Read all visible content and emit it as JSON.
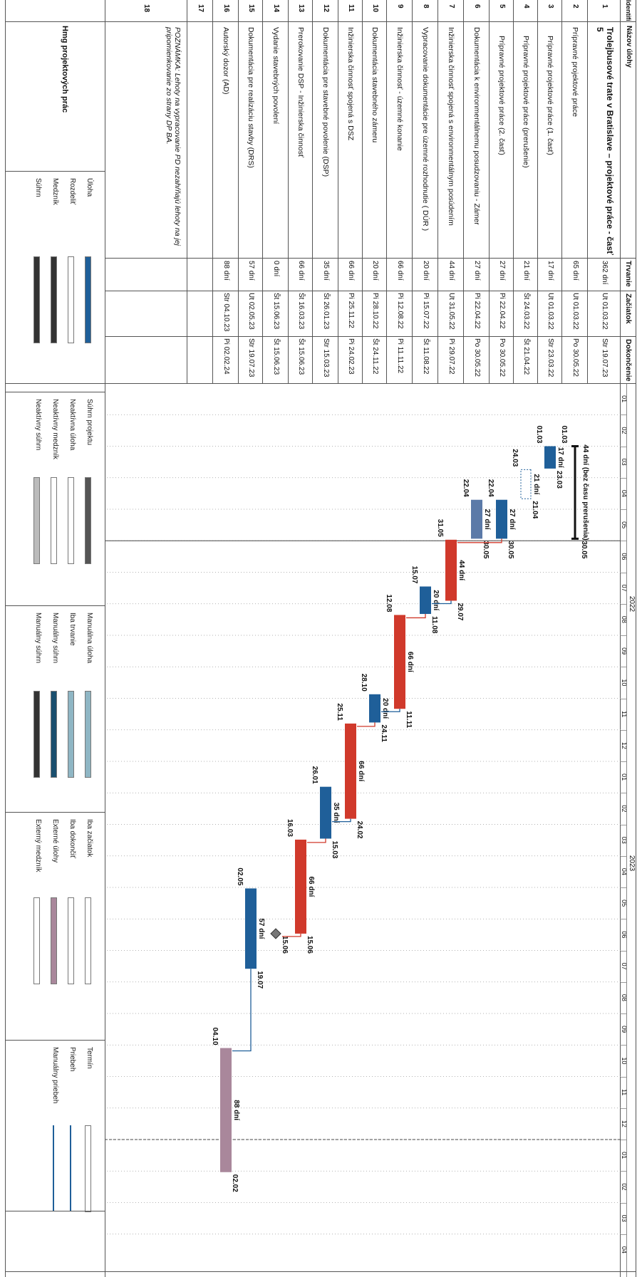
{
  "columns": {
    "id": "Identifi",
    "name": "Názov úlohy",
    "duration": "Trvanie",
    "start": "Začiatok",
    "finish": "Dokončenie"
  },
  "timeline": {
    "years": [
      {
        "label": "2022"
      },
      {
        "label": "2023"
      }
    ],
    "months": [
      "01",
      "02",
      "03",
      "04",
      "05",
      "06",
      "07",
      "08",
      "09",
      "10",
      "11",
      "12",
      "01",
      "02",
      "03",
      "04",
      "05",
      "06",
      "07",
      "08",
      "09",
      "10",
      "11",
      "12",
      "01",
      "02",
      "03",
      "04"
    ]
  },
  "tasks": [
    {
      "id": "1",
      "name": "Trolejbusové trate v Bratislave – projektové práce - časť 5",
      "duration": "362 dní",
      "start": "Ut 01.03.22",
      "finish": "Str 19.07.23",
      "bold": true
    },
    {
      "id": "2",
      "name": "Prípravné projektové práce",
      "duration": "65 dní",
      "start": "Ut 01.03.22",
      "finish": "Po 30.05.22"
    },
    {
      "id": "3",
      "name": "Prípravné projektové práce (1. časť)",
      "duration": "17 dní",
      "start": "Ut 01.03.22",
      "finish": "Str 23.03.22"
    },
    {
      "id": "4",
      "name": "Prípravné projektové práce (prerušenie)",
      "duration": "21 dní",
      "start": "Št 24.03.22",
      "finish": "Št 21.04.22"
    },
    {
      "id": "5",
      "name": "Prípravné projektové práce (2. časť)",
      "duration": "27 dní",
      "start": "Pi 22.04.22",
      "finish": "Po 30.05.22"
    },
    {
      "id": "6",
      "name": "Dokumentácia k environmentálnemu posudzovaniu - Zámer",
      "duration": "27 dní",
      "start": "Pi 22.04.22",
      "finish": "Po 30.05.22"
    },
    {
      "id": "7",
      "name": "Inžinierska činnosť spojená s environmentálnym posúdením",
      "duration": "44 dní",
      "start": "Ut 31.05.22",
      "finish": "Pi 29.07.22"
    },
    {
      "id": "8",
      "name": "Vypracovanie dokumentácie pre územné rozhodnutie ( DÚR )",
      "duration": "20 dní",
      "start": "Pi 15.07.22",
      "finish": "Št 11.08.22"
    },
    {
      "id": "9",
      "name": "Inžinierska činnosť - územné konanie",
      "duration": "66 dní",
      "start": "Pi 12.08.22",
      "finish": "Pi 11.11.22"
    },
    {
      "id": "10",
      "name": "Dokumentácia stavebného zámeru",
      "duration": "20 dní",
      "start": "Pi 28.10.22",
      "finish": "Št 24.11.22"
    },
    {
      "id": "11",
      "name": "Inžinierska činnosť spojená s DSZ",
      "duration": "66 dní",
      "start": "Pi 25.11.22",
      "finish": "Pi 24.02.23"
    },
    {
      "id": "12",
      "name": "Dokumentácia pre stavebné povolenie (DSP)",
      "duration": "35 dní",
      "start": "Št 26.01.23",
      "finish": "Str 15.03.23"
    },
    {
      "id": "13",
      "name": "Prerokovanie DSP - Inžinierska činnosť",
      "duration": "66 dní",
      "start": "Št 16.03.23",
      "finish": "Št 15.06.23"
    },
    {
      "id": "14",
      "name": "Vydanie stavebných povolení",
      "duration": "0 dní",
      "start": "Št 15.06.23",
      "finish": "Št 15.06.23"
    },
    {
      "id": "15",
      "name": "Dokumentácia pre realizáciu stavby (DRS)",
      "duration": "57 dní",
      "start": "Ut 02.05.23",
      "finish": "Str 19.07.23"
    },
    {
      "id": "16",
      "name": "Autorský dozor (AD)",
      "duration": "88 dní",
      "start": "Str 04.10.23",
      "finish": "Pi 02.02.24"
    },
    {
      "id": "17",
      "name": "",
      "duration": "",
      "start": "",
      "finish": ""
    },
    {
      "id": "18",
      "name": "POZNÁMKA: Lehoty na vypracovanie PD nezahŕňajú lehoty na jej pripomienkovanie zo strany DP BA.",
      "duration": "",
      "start": "",
      "finish": "",
      "italic": true
    }
  ],
  "gantt_labels": {
    "r2_dur": "44 dní (bez času prerušenia)",
    "r2_s": "01.03",
    "r2_f": "30.05",
    "r3_dur": "17 dní",
    "r3_s": "01.03",
    "r3_f": "23.03",
    "r4_dur": "21 dní",
    "r4_s": "24.03",
    "r4_f": "21.04",
    "r5_dur": "27 dní",
    "r5_s": "22.04",
    "r5_f": "30.05",
    "r6_dur": "27 dní",
    "r6_s": "22.04",
    "r6_f": "30.05",
    "r7_dur": "44 dní",
    "r7_s": "31.05",
    "r7_f": "29.07",
    "r8_dur": "20 dní",
    "r8_s": "15.07",
    "r8_f": "11.08",
    "r9_dur": "66 dní",
    "r9_s": "12.08",
    "r9_f": "11.11",
    "r10_dur": "20 dní",
    "r10_s": "28.10",
    "r10_f": "24.11",
    "r11_dur": "66 dní",
    "r11_s": "25.11",
    "r11_f": "24.02",
    "r12_dur": "35 dní",
    "r12_s": "26.01",
    "r12_f": "15.03",
    "r13_dur": "66 dní",
    "r13_s": "16.03",
    "r13_f": "15.06",
    "r14_f": "15.06",
    "r15_dur": "57 dní",
    "r15_s": "02.05",
    "r15_f": "19.07",
    "r16_dur": "88 dní",
    "r16_s": "04.10",
    "r16_f": "02.02"
  },
  "legend": {
    "title": "Hmg projektových prác",
    "col1": [
      "Úloha",
      "Rozdeliť",
      "Medzník",
      "Súhrn"
    ],
    "col2": [
      "Súhrn projektu",
      "Neaktívna úloha",
      "Neaktívny medzník",
      "Neaktívny súhrn"
    ],
    "col3": [
      "Manuálna úloha",
      "Iba trvanie",
      "Manuálny súhrn",
      "Manuálny súhrn"
    ],
    "col4": [
      "Iba začiatok",
      "Iba dokončiť",
      "Externé úlohy",
      "Externý medzník"
    ],
    "col5": [
      "Termín",
      "Priebeh",
      "Manuálny priebeh"
    ]
  },
  "colors": {
    "blue": "#1f5f99",
    "red": "#d0392b",
    "mauve": "#a9879b",
    "dark": "#333333",
    "grid": "#9a9a9a"
  }
}
